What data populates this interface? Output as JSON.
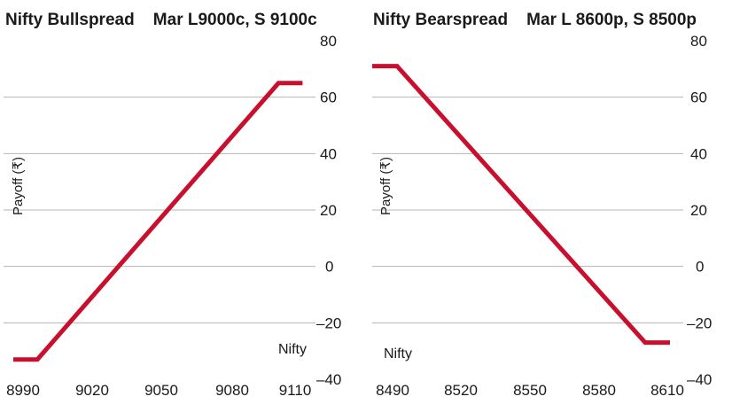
{
  "chart_data": [
    {
      "type": "line",
      "title": "Nifty Bullspread    Mar L9000c, S 9100c",
      "xlabel": "Nifty",
      "ylabel": "Payoff (₹)",
      "xlim": [
        8990,
        9115
      ],
      "ylim": [
        -40,
        80
      ],
      "xticks": [
        8990,
        9020,
        9050,
        9080,
        9110
      ],
      "xtick_labels": [
        "8990",
        "9020",
        "9050",
        "9080",
        "9110"
      ],
      "yticks": [
        80,
        60,
        40,
        20,
        0,
        -20,
        -40
      ],
      "ytick_labels": [
        "80",
        "60",
        "40",
        "20",
        "0",
        "–20",
        "–40"
      ],
      "grid": true,
      "series": [
        {
          "name": "Payoff",
          "color": "#c8102e",
          "x": [
            8990,
            9000,
            9100,
            9110
          ],
          "y": [
            -33,
            -33,
            65,
            65
          ]
        }
      ]
    },
    {
      "type": "line",
      "title": "Nifty Bearspread    Mar L 8600p, S 8500p",
      "xlabel": "Nifty",
      "ylabel": "Payoff (₹)",
      "xlim": [
        8490,
        8615
      ],
      "ylim": [
        -40,
        80
      ],
      "xticks": [
        8490,
        8520,
        8550,
        8580,
        8610
      ],
      "xtick_labels": [
        "8490",
        "8520",
        "8550",
        "8580",
        "8610"
      ],
      "yticks": [
        80,
        60,
        40,
        20,
        0,
        -20,
        -40
      ],
      "ytick_labels": [
        "80",
        "60",
        "40",
        "20",
        "0",
        "–20",
        "–40"
      ],
      "grid": true,
      "series": [
        {
          "name": "Payoff",
          "color": "#c8102e",
          "x": [
            8490,
            8500,
            8600,
            8610
          ],
          "y": [
            71,
            71,
            -27,
            -27
          ]
        }
      ]
    }
  ]
}
